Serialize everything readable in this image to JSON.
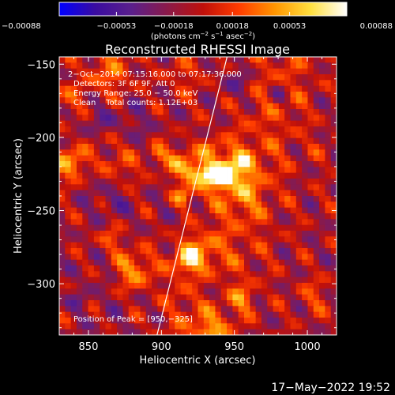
{
  "chart_data": {
    "type": "heatmap",
    "title": "Reconstructed RHESSI Image",
    "xlabel": "Heliocentric X (arcsec)",
    "ylabel": "Heliocentric Y (arcsec)",
    "xlim": [
      830,
      1020
    ],
    "ylim": [
      -335,
      -145
    ],
    "xticks": [
      850,
      900,
      950,
      1000
    ],
    "yticks": [
      -150,
      -200,
      -250,
      -300
    ],
    "xtick_labels": [
      "850",
      "900",
      "950",
      "1000"
    ],
    "ytick_labels": [
      "−150",
      "−200",
      "−250",
      "−300"
    ],
    "colorbar": {
      "range": [
        -0.00088,
        0.00088
      ],
      "ticks": [
        -0.00088,
        -0.00053,
        -0.00018,
        0.00018,
        0.00053,
        0.00088
      ],
      "tick_labels": [
        "−0.00088",
        "−0.00053",
        "−0.00018",
        "0.00018",
        "0.00053",
        "0.00088"
      ],
      "unit_prefix": "(photons cm",
      "unit_exp1": "−2",
      "unit_mid": " s",
      "unit_exp2": "−1",
      "unit_mid2": " asec",
      "unit_exp3": "−2",
      "unit_suffix": ")",
      "colors": [
        "#0000ff",
        "#3a0ca0",
        "#5a1f8c",
        "#8a1a4a",
        "#c0100a",
        "#ff3c00",
        "#ff9600",
        "#ffe040",
        "#ffffff"
      ]
    },
    "annotations": {
      "line1": "2−Oct−2014 07:15:16.000 to 07:17:36.000",
      "line2": "Detectors: 3F 6F 9F, Att 0",
      "line3": "Energy Range: 25.0 − 50.0 keV",
      "line4": "Clean    Total counts: 1.12E+03",
      "peak": "Position of Peak = [950,−325]"
    },
    "limb_line": {
      "x": [
        897,
        945
      ],
      "y": [
        -335,
        -145
      ]
    },
    "peak": {
      "x": 950,
      "y": -325
    }
  },
  "footer": {
    "timestamp": "17−May−2022 19:52"
  }
}
